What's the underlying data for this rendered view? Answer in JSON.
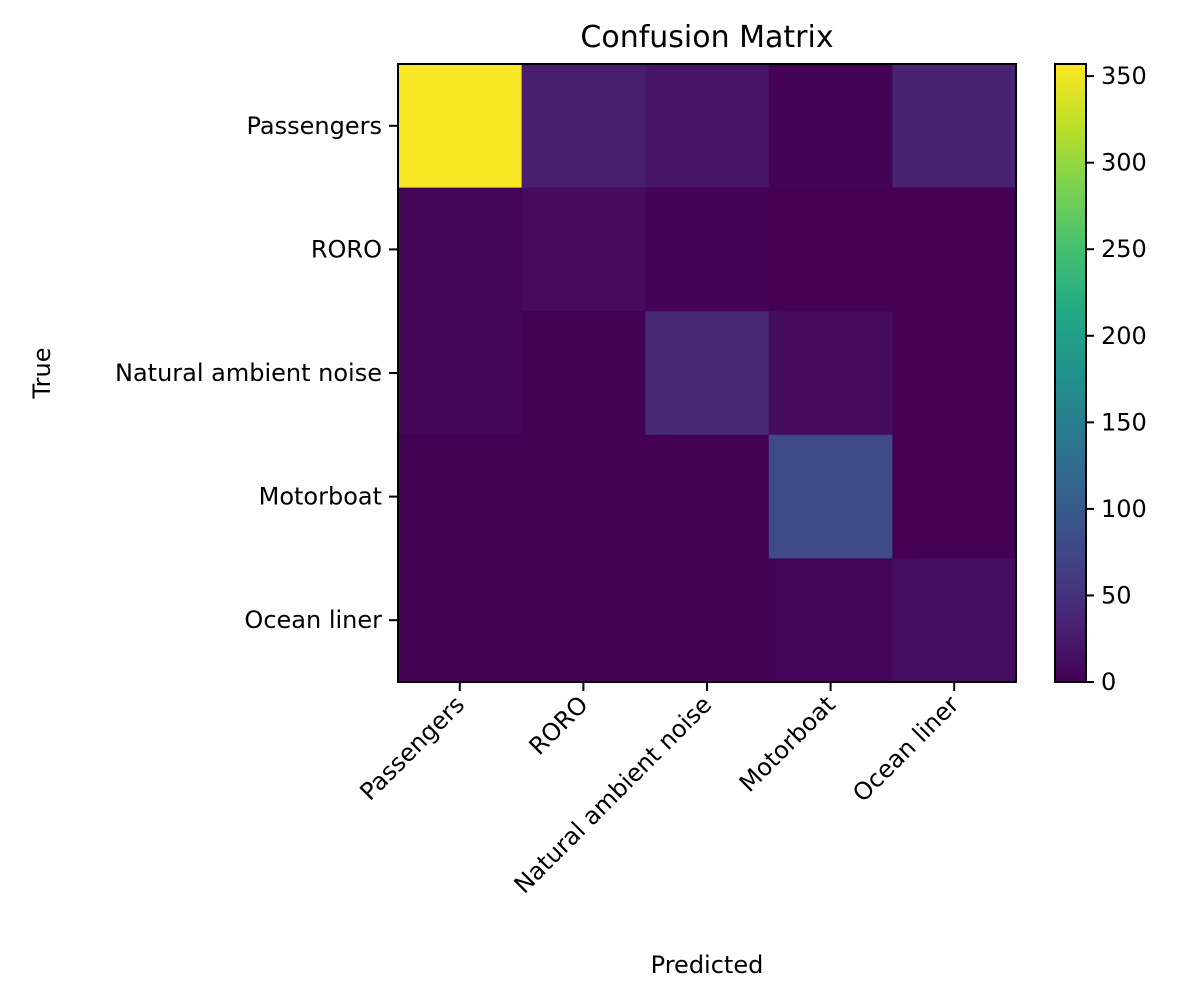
{
  "chart_data": {
    "type": "heatmap",
    "title": "Confusion Matrix",
    "xlabel": "Predicted",
    "ylabel": "True",
    "x_categories": [
      "Passengers",
      "RORO",
      "Natural ambient noise",
      "Motorboat",
      "Ocean liner"
    ],
    "y_categories": [
      "Passengers",
      "RORO",
      "Natural ambient noise",
      "Motorboat",
      "Ocean liner"
    ],
    "matrix": [
      [
        355,
        30,
        20,
        2,
        35
      ],
      [
        3,
        10,
        2,
        0,
        0
      ],
      [
        5,
        1,
        40,
        10,
        0
      ],
      [
        1,
        1,
        1,
        80,
        0
      ],
      [
        1,
        1,
        1,
        3,
        12
      ]
    ],
    "colorbar": {
      "vmin": 0,
      "vmax": 357,
      "ticks": [
        0,
        50,
        100,
        150,
        200,
        250,
        300,
        350
      ],
      "colormap": "viridis"
    }
  }
}
